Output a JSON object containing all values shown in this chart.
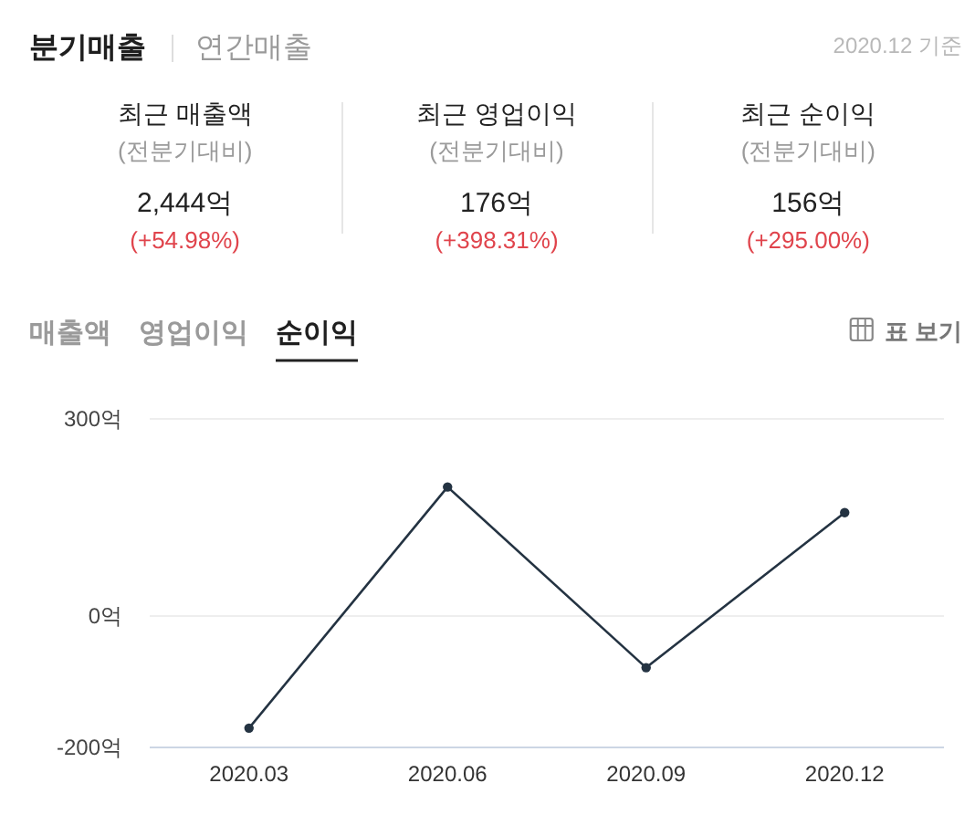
{
  "chart_data": [
    {
      "type": "other",
      "title": "분기매출",
      "annotations": [
        "연간매출",
        "2020.12 기준",
        "최근 매출액",
        "(전분기대비)",
        "2,444억",
        "(+54.98%)",
        "최근 영업이익",
        "(전분기대비)",
        "176억",
        "(+398.31%)",
        "최근 순이익",
        "(전분기대비)",
        "156억",
        "(+295.00%)"
      ]
    },
    {
      "type": "line",
      "title": "순이익",
      "annotations": [
        "매출액",
        "영업이익",
        "표 보기"
      ],
      "categories": [
        "2020.03",
        "2020.06",
        "2020.09",
        "2020.12"
      ],
      "values": [
        -172,
        195,
        -80,
        156
      ],
      "color": "#243342",
      "ylim": [
        -200,
        300
      ],
      "yticks": [
        {
          "value": 300,
          "label": "300억"
        },
        {
          "value": 0,
          "label": "0억"
        },
        {
          "value": -200,
          "label": "-200억"
        }
      ],
      "grid": "y",
      "marker": "circle",
      "line_style": "solid"
    }
  ]
}
